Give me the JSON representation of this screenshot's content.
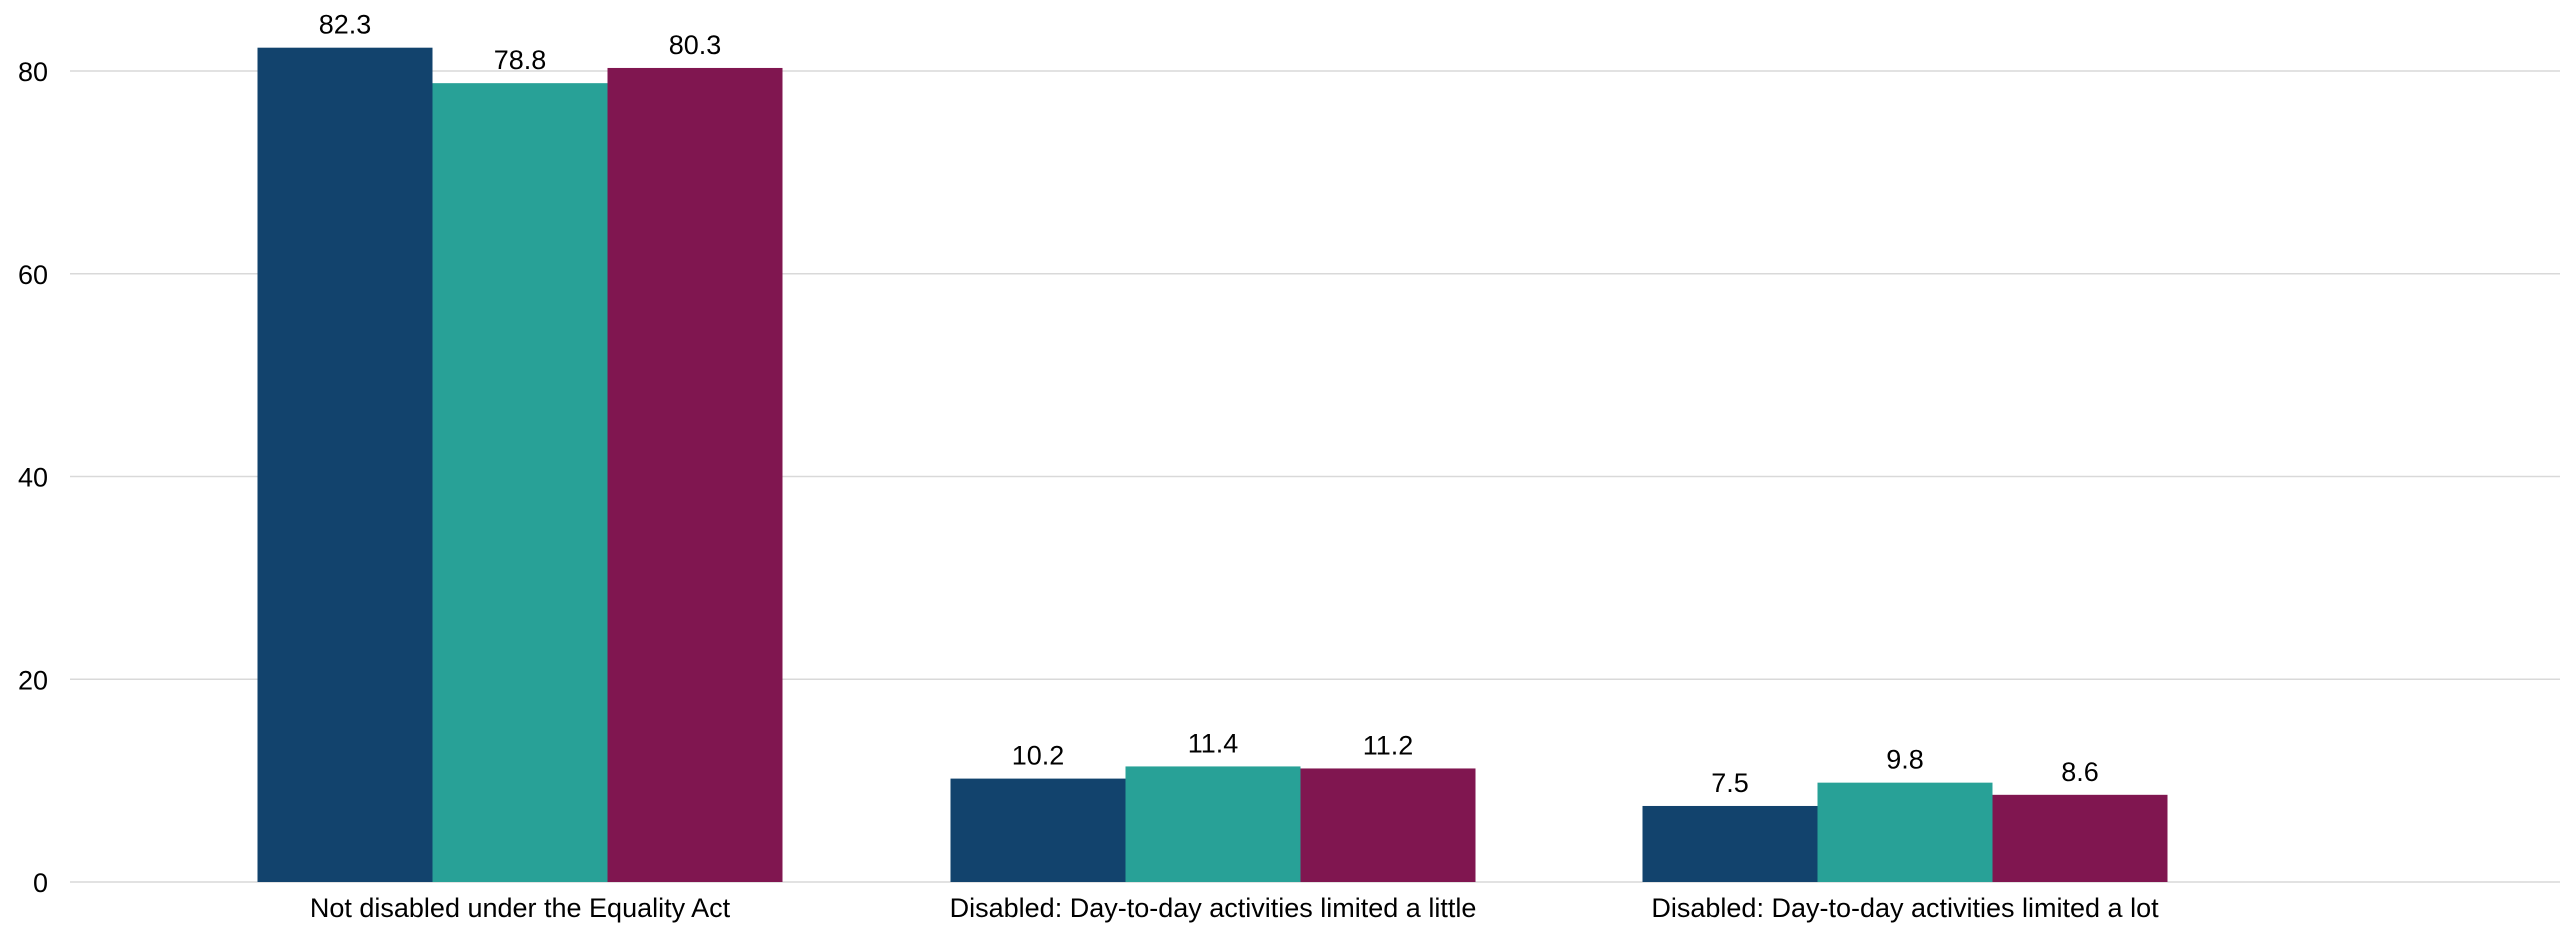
{
  "chart_data": {
    "type": "bar",
    "categories": [
      "Not disabled under the Equality Act",
      "Disabled: Day-to-day activities limited a little",
      "Disabled: Day-to-day activities limited a lot"
    ],
    "series": [
      {
        "values": [
          82.3,
          10.2,
          7.5
        ],
        "color": "#12436d"
      },
      {
        "values": [
          78.8,
          11.4,
          9.8
        ],
        "color": "#28a197"
      },
      {
        "values": [
          80.3,
          11.2,
          8.6
        ],
        "color": "#801650"
      }
    ],
    "yticks": [
      0,
      20,
      40,
      60,
      80
    ],
    "ylim": [
      0,
      85
    ],
    "grid": true,
    "title": "",
    "xlabel": "",
    "ylabel": ""
  }
}
